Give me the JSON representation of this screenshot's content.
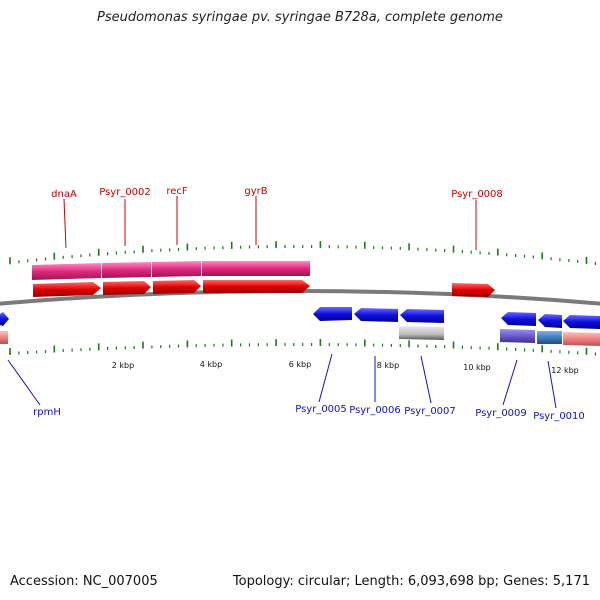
{
  "title": "Pseudomonas syringae pv. syringae B728a, complete genome",
  "footer": {
    "accession": "Accession: NC_007005",
    "summary": "Topology: circular; Length: 6,093,698 bp; Genes: 5,171"
  },
  "colors": {
    "forward_cds": "#e30000",
    "reverse_cds": "#1414e6",
    "forward_gene": "#e0287c",
    "reverse_gene_light": "#f08080",
    "gray_gene": "#bdbdbd",
    "purple_gene": "#6a5acd",
    "steel_gene": "#3f7fbf",
    "tick": "#1a7a1a",
    "backbone": "#777777"
  },
  "scale_labels": [
    "2 kbp",
    "4 kbp",
    "6 kbp",
    "8 kbp",
    "10 kbp",
    "12 kbp"
  ],
  "top_labels": [
    "dnaA",
    "Psyr_0002",
    "recF",
    "gyrB",
    "Psyr_0008"
  ],
  "bottom_labels": [
    "rpmH",
    "Psyr_0005",
    "Psyr_0006",
    "Psyr_0007",
    "Psyr_0009",
    "Psyr_0010"
  ]
}
